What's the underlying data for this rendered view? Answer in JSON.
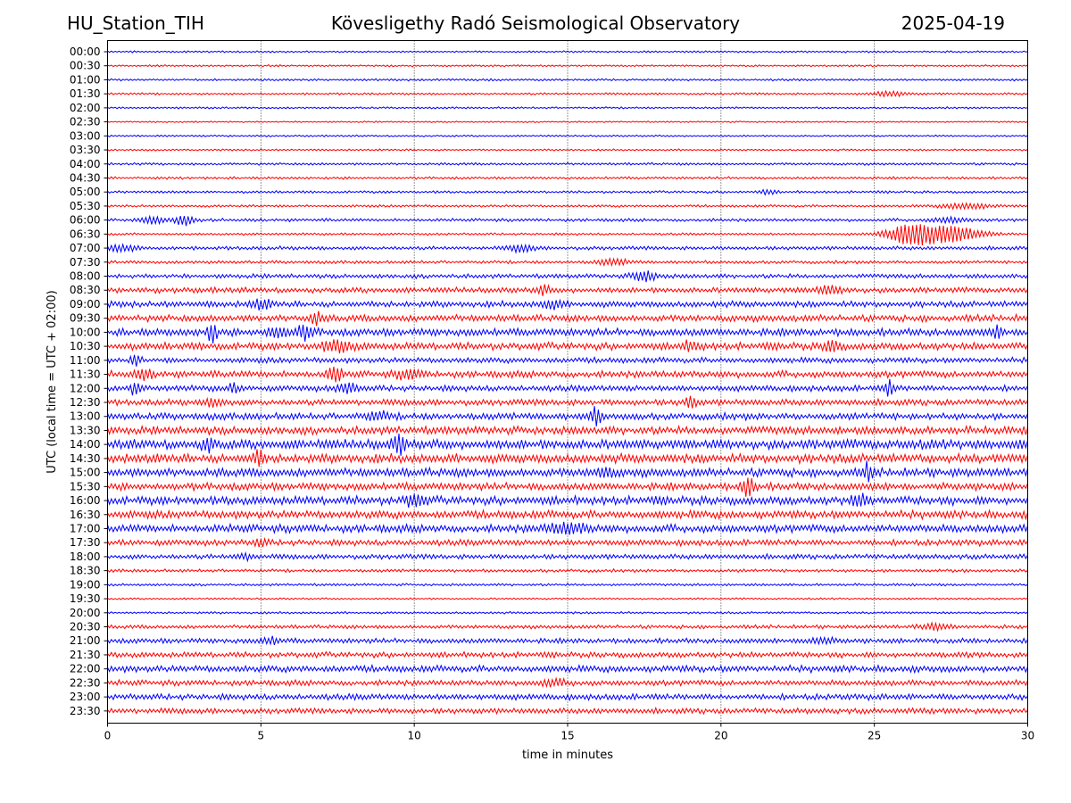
{
  "header": {
    "station": "HU_Station_TIH",
    "title": "Kövesligethy Radó Seismological Observatory",
    "date": "2025-04-19"
  },
  "chart_data": {
    "type": "line",
    "xlabel": "time in minutes",
    "ylabel": "UTC (local time = UTC + 02:00)",
    "xlim": [
      0,
      30
    ],
    "x_ticks": [
      "0",
      "5",
      "10",
      "15",
      "20",
      "25",
      "30"
    ],
    "x_tick_values": [
      0,
      5,
      10,
      15,
      20,
      25,
      30
    ],
    "grid": "vertical dotted at x ticks",
    "colors": {
      "even_rows": "#0000ff",
      "odd_rows": "#ff0000"
    },
    "rows": [
      {
        "label": "00:00",
        "noise": 0.15,
        "events": []
      },
      {
        "label": "00:30",
        "noise": 0.15,
        "events": []
      },
      {
        "label": "01:00",
        "noise": 0.18,
        "events": []
      },
      {
        "label": "01:30",
        "noise": 0.18,
        "events": [
          {
            "t": 25.5,
            "amp": 0.45,
            "dur": 0.6
          }
        ]
      },
      {
        "label": "02:00",
        "noise": 0.15,
        "events": []
      },
      {
        "label": "02:30",
        "noise": 0.12,
        "events": []
      },
      {
        "label": "03:00",
        "noise": 0.15,
        "events": []
      },
      {
        "label": "03:30",
        "noise": 0.15,
        "events": []
      },
      {
        "label": "04:00",
        "noise": 0.2,
        "events": []
      },
      {
        "label": "04:30",
        "noise": 0.2,
        "events": []
      },
      {
        "label": "05:00",
        "noise": 0.2,
        "events": [
          {
            "t": 21.5,
            "amp": 0.4,
            "dur": 0.3
          }
        ]
      },
      {
        "label": "05:30",
        "noise": 0.2,
        "events": [
          {
            "t": 28.0,
            "amp": 0.6,
            "dur": 0.8
          }
        ]
      },
      {
        "label": "06:00",
        "noise": 0.25,
        "events": [
          {
            "t": 1.5,
            "amp": 0.8,
            "dur": 0.4
          },
          {
            "t": 2.5,
            "amp": 1.2,
            "dur": 0.3
          },
          {
            "t": 27.5,
            "amp": 0.5,
            "dur": 0.6
          }
        ]
      },
      {
        "label": "06:30",
        "noise": 0.2,
        "events": [
          {
            "t": 26.2,
            "amp": 2.0,
            "dur": 0.8
          },
          {
            "t": 27.5,
            "amp": 1.6,
            "dur": 1.0
          }
        ]
      },
      {
        "label": "07:00",
        "noise": 0.3,
        "events": [
          {
            "t": 0.5,
            "amp": 0.6,
            "dur": 0.6
          },
          {
            "t": 13.5,
            "amp": 0.7,
            "dur": 0.4
          }
        ]
      },
      {
        "label": "07:30",
        "noise": 0.25,
        "events": [
          {
            "t": 16.5,
            "amp": 0.6,
            "dur": 0.5
          }
        ]
      },
      {
        "label": "08:00",
        "noise": 0.35,
        "events": [
          {
            "t": 17.5,
            "amp": 1.0,
            "dur": 0.4
          }
        ]
      },
      {
        "label": "08:30",
        "noise": 0.45,
        "events": [
          {
            "t": 14.2,
            "amp": 0.9,
            "dur": 0.2
          },
          {
            "t": 23.5,
            "amp": 0.6,
            "dur": 0.5
          }
        ]
      },
      {
        "label": "09:00",
        "noise": 0.5,
        "events": [
          {
            "t": 5.0,
            "amp": 0.9,
            "dur": 0.3
          },
          {
            "t": 14.5,
            "amp": 0.8,
            "dur": 0.3
          }
        ]
      },
      {
        "label": "09:30",
        "noise": 0.55,
        "events": [
          {
            "t": 6.8,
            "amp": 1.2,
            "dur": 0.2
          }
        ]
      },
      {
        "label": "10:00",
        "noise": 0.6,
        "events": [
          {
            "t": 3.4,
            "amp": 2.2,
            "dur": 0.15
          },
          {
            "t": 5.5,
            "amp": 1.0,
            "dur": 0.3
          },
          {
            "t": 6.4,
            "amp": 1.2,
            "dur": 0.3
          },
          {
            "t": 29.0,
            "amp": 1.0,
            "dur": 0.2
          }
        ]
      },
      {
        "label": "10:30",
        "noise": 0.6,
        "events": [
          {
            "t": 7.5,
            "amp": 0.9,
            "dur": 0.5
          },
          {
            "t": 19.0,
            "amp": 0.7,
            "dur": 0.3
          },
          {
            "t": 23.6,
            "amp": 1.3,
            "dur": 0.2
          }
        ]
      },
      {
        "label": "11:00",
        "noise": 0.45,
        "events": [
          {
            "t": 0.9,
            "amp": 1.0,
            "dur": 0.15
          }
        ]
      },
      {
        "label": "11:30",
        "noise": 0.55,
        "events": [
          {
            "t": 1.2,
            "amp": 0.8,
            "dur": 0.3
          },
          {
            "t": 7.4,
            "amp": 1.8,
            "dur": 0.2
          },
          {
            "t": 9.8,
            "amp": 0.8,
            "dur": 0.4
          }
        ]
      },
      {
        "label": "12:00",
        "noise": 0.5,
        "events": [
          {
            "t": 0.9,
            "amp": 1.2,
            "dur": 0.15
          },
          {
            "t": 4.1,
            "amp": 0.8,
            "dur": 0.2
          },
          {
            "t": 7.8,
            "amp": 1.0,
            "dur": 0.3
          },
          {
            "t": 25.5,
            "amp": 1.6,
            "dur": 0.15
          }
        ]
      },
      {
        "label": "12:30",
        "noise": 0.5,
        "events": [
          {
            "t": 19.0,
            "amp": 1.6,
            "dur": 0.15
          },
          {
            "t": 3.5,
            "amp": 0.6,
            "dur": 0.4
          }
        ]
      },
      {
        "label": "13:00",
        "noise": 0.55,
        "events": [
          {
            "t": 15.9,
            "amp": 1.6,
            "dur": 0.2
          },
          {
            "t": 8.8,
            "amp": 0.7,
            "dur": 0.4
          }
        ]
      },
      {
        "label": "13:30",
        "noise": 0.65,
        "events": []
      },
      {
        "label": "14:00",
        "noise": 0.8,
        "events": [
          {
            "t": 9.5,
            "amp": 1.8,
            "dur": 0.2
          },
          {
            "t": 3.3,
            "amp": 1.2,
            "dur": 0.2
          }
        ]
      },
      {
        "label": "14:30",
        "noise": 0.75,
        "events": [
          {
            "t": 4.9,
            "amp": 1.4,
            "dur": 0.2
          }
        ]
      },
      {
        "label": "15:00",
        "noise": 0.7,
        "events": [
          {
            "t": 24.8,
            "amp": 1.8,
            "dur": 0.15
          },
          {
            "t": 16.2,
            "amp": 0.8,
            "dur": 0.3
          }
        ]
      },
      {
        "label": "15:30",
        "noise": 0.6,
        "events": [
          {
            "t": 20.9,
            "amp": 1.8,
            "dur": 0.2
          }
        ]
      },
      {
        "label": "16:00",
        "noise": 0.7,
        "events": [
          {
            "t": 10.0,
            "amp": 1.0,
            "dur": 0.3
          },
          {
            "t": 24.5,
            "amp": 0.9,
            "dur": 0.3
          }
        ]
      },
      {
        "label": "16:30",
        "noise": 0.65,
        "events": []
      },
      {
        "label": "17:00",
        "noise": 0.65,
        "events": [
          {
            "t": 15.0,
            "amp": 1.0,
            "dur": 0.6
          }
        ]
      },
      {
        "label": "17:30",
        "noise": 0.5,
        "events": [
          {
            "t": 5.0,
            "amp": 0.7,
            "dur": 0.2
          }
        ]
      },
      {
        "label": "18:00",
        "noise": 0.4,
        "events": [
          {
            "t": 4.5,
            "amp": 0.5,
            "dur": 0.3
          }
        ]
      },
      {
        "label": "18:30",
        "noise": 0.25,
        "events": []
      },
      {
        "label": "19:00",
        "noise": 0.2,
        "events": []
      },
      {
        "label": "19:30",
        "noise": 0.15,
        "events": []
      },
      {
        "label": "20:00",
        "noise": 0.18,
        "events": []
      },
      {
        "label": "20:30",
        "noise": 0.3,
        "events": [
          {
            "t": 27.0,
            "amp": 0.5,
            "dur": 0.6
          }
        ]
      },
      {
        "label": "21:00",
        "noise": 0.4,
        "events": [
          {
            "t": 5.3,
            "amp": 0.6,
            "dur": 0.3
          },
          {
            "t": 23.2,
            "amp": 0.5,
            "dur": 0.5
          }
        ]
      },
      {
        "label": "21:30",
        "noise": 0.45,
        "events": []
      },
      {
        "label": "22:00",
        "noise": 0.55,
        "events": []
      },
      {
        "label": "22:30",
        "noise": 0.45,
        "events": [
          {
            "t": 14.5,
            "amp": 0.5,
            "dur": 0.5
          }
        ]
      },
      {
        "label": "23:00",
        "noise": 0.5,
        "events": []
      },
      {
        "label": "23:30",
        "noise": 0.45,
        "events": []
      }
    ]
  }
}
